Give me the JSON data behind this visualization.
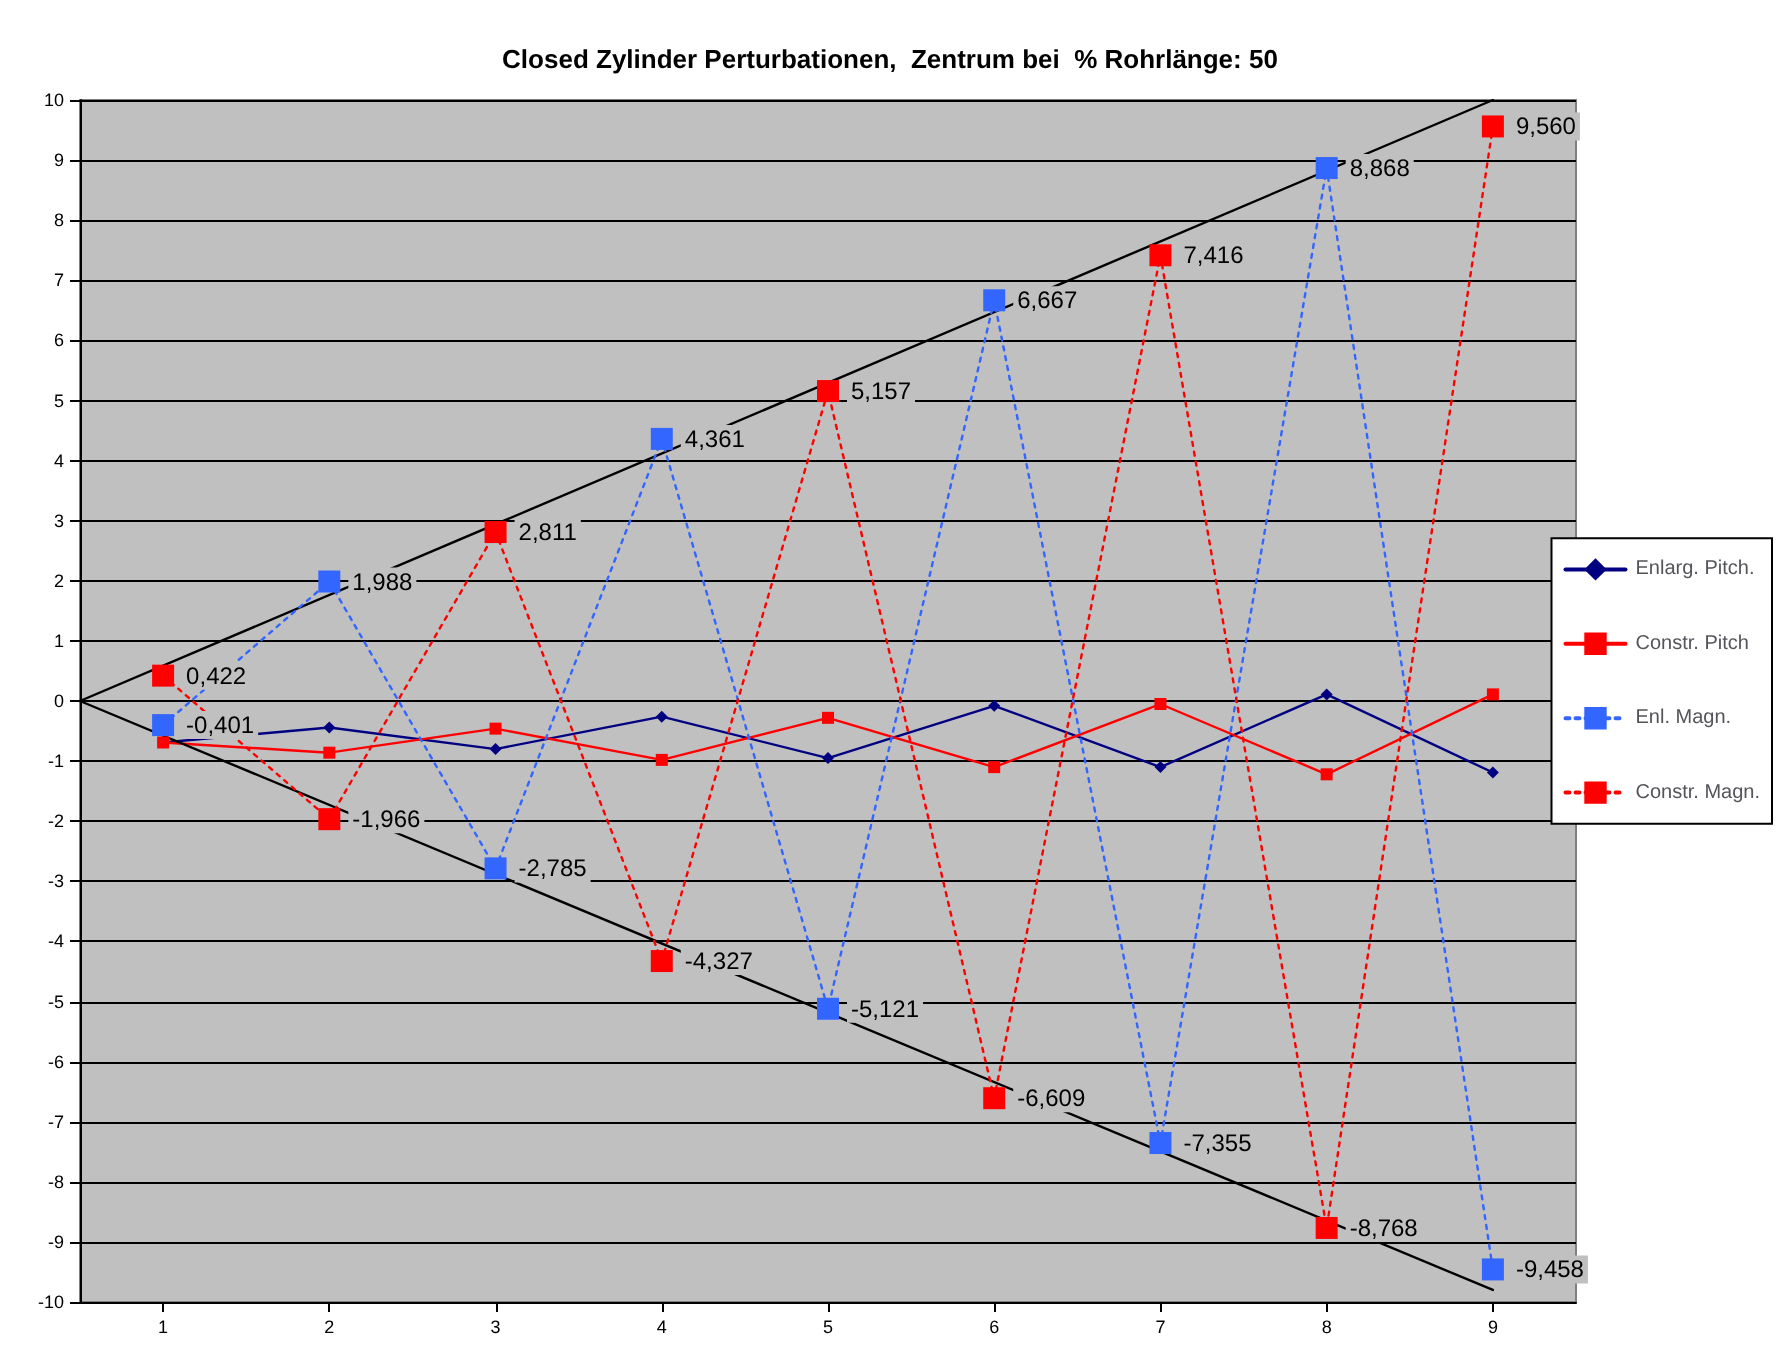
{
  "chart_data": {
    "type": "line",
    "title": "Closed Zylinder Perturbationen,  Zentrum bei  % Rohrlänge: 50",
    "xlim": [
      0.5,
      9.5
    ],
    "xticks": [
      1,
      2,
      3,
      4,
      5,
      6,
      7,
      8,
      9
    ],
    "ylim": [
      -10,
      10
    ],
    "yticks": [
      -10,
      -9,
      -8,
      -7,
      -6,
      -5,
      -4,
      -3,
      -2,
      -1,
      0,
      1,
      2,
      3,
      4,
      5,
      6,
      7,
      8,
      9,
      10
    ],
    "grid": "y",
    "legend": "right",
    "series": [
      {
        "name": "Enlarg. Pitch.",
        "color": "#000080",
        "x": [
          1,
          2,
          3,
          4,
          5,
          6,
          7,
          8,
          9
        ],
        "values": [
          -0.69,
          -0.44,
          -0.8,
          -0.26,
          -0.95,
          -0.08,
          -1.1,
          0.11,
          -1.19
        ],
        "marker": "diamond",
        "line_style": "solid"
      },
      {
        "name": "Constr. Pitch",
        "color": "#ff0000",
        "x": [
          1,
          2,
          3,
          4,
          5,
          6,
          7,
          8,
          9
        ],
        "values": [
          -0.69,
          -0.86,
          -0.46,
          -0.98,
          -0.28,
          -1.1,
          -0.05,
          -1.22,
          0.11
        ],
        "marker": "square",
        "line_style": "solid"
      },
      {
        "name": "Enl. Magn.",
        "color": "#3366ff",
        "x": [
          1,
          2,
          3,
          4,
          5,
          6,
          7,
          8,
          9
        ],
        "values": [
          -0.401,
          1.988,
          -2.785,
          4.361,
          -5.121,
          6.667,
          -7.355,
          8.868,
          -9.458
        ],
        "value_labels": [
          "-0,401",
          "1,988",
          "-2,785",
          "4,361",
          "-5,121",
          "6,667",
          "-7,355",
          "8,868",
          "-9,458"
        ],
        "marker": "square",
        "line_style": "dotted"
      },
      {
        "name": "Constr. Magn.",
        "color": "#ff0000",
        "x": [
          1,
          2,
          3,
          4,
          5,
          6,
          7,
          8,
          9
        ],
        "values": [
          0.422,
          -1.966,
          2.811,
          -4.327,
          5.157,
          -6.609,
          7.416,
          -8.768,
          9.56
        ],
        "value_labels": [
          "0,422",
          "-1,966",
          "2,811",
          "-4,327",
          "5,157",
          "-6,609",
          "7,416",
          "-8,768",
          "9,560"
        ],
        "marker": "square",
        "line_style": "dotted"
      },
      {
        "color": "#000000",
        "x": [
          0.5,
          9
        ],
        "values": [
          0,
          10
        ],
        "marker": "none",
        "line_style": "solid"
      },
      {
        "color": "#000000",
        "x": [
          0.5,
          9
        ],
        "values": [
          0,
          -9.8
        ],
        "marker": "none",
        "line_style": "solid"
      }
    ]
  }
}
